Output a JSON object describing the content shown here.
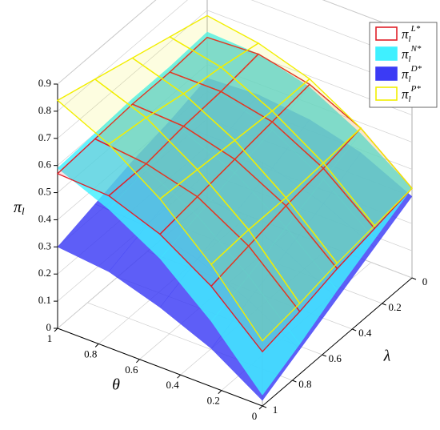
{
  "chart_data": {
    "type": "surface3d",
    "xlabel": "θ",
    "ylabel": "λ",
    "zlabel": {
      "symbol": "π",
      "sub": "l"
    },
    "x": [
      0,
      0.25,
      0.5,
      0.75,
      1
    ],
    "y": [
      0,
      0.25,
      0.5,
      0.75,
      1
    ],
    "xlim": [
      0,
      1
    ],
    "ylim": [
      0,
      1
    ],
    "zlim": [
      0,
      0.9
    ],
    "xticks": [
      1,
      0.8,
      0.6,
      0.4,
      0.2,
      0
    ],
    "yticks": [
      0,
      0.2,
      0.4,
      0.6,
      0.8,
      1
    ],
    "zticks": [
      0,
      0.1,
      0.2,
      0.3,
      0.4,
      0.5,
      0.6,
      0.7,
      0.8,
      0.9
    ],
    "grid": true,
    "legend": "top-right",
    "series": [
      {
        "name": {
          "symbol": "π",
          "sub": "l",
          "sup": "D*"
        },
        "color": "#3b3bf5",
        "style": "solid",
        "z": [
          [
            0.3,
            0.39,
            0.44,
            0.46,
            0.45
          ],
          [
            0.23,
            0.32,
            0.38,
            0.41,
            0.41
          ],
          [
            0.16,
            0.26,
            0.33,
            0.37,
            0.38
          ],
          [
            0.09,
            0.2,
            0.28,
            0.33,
            0.34
          ],
          [
            0.02,
            0.14,
            0.22,
            0.28,
            0.3
          ]
        ]
      },
      {
        "name": {
          "symbol": "π",
          "sub": "l",
          "sup": "N*"
        },
        "color": "#3ff0ff",
        "style": "solid",
        "z": [
          [
            0.33,
            0.46,
            0.56,
            0.61,
            0.62
          ],
          [
            0.26,
            0.41,
            0.52,
            0.58,
            0.61
          ],
          [
            0.19,
            0.35,
            0.48,
            0.56,
            0.61
          ],
          [
            0.11,
            0.29,
            0.44,
            0.54,
            0.6
          ],
          [
            0.04,
            0.24,
            0.4,
            0.51,
            0.59
          ]
        ]
      },
      {
        "name": {
          "symbol": "π",
          "sub": "l",
          "sup": "L*"
        },
        "color": "#e0202a",
        "style": "wire",
        "z": [
          [
            0.33,
            0.48,
            0.57,
            0.61,
            0.6
          ],
          [
            0.3,
            0.45,
            0.55,
            0.59,
            0.59
          ],
          [
            0.27,
            0.43,
            0.53,
            0.58,
            0.59
          ],
          [
            0.23,
            0.4,
            0.51,
            0.56,
            0.58
          ],
          [
            0.2,
            0.37,
            0.49,
            0.56,
            0.57
          ]
        ]
      },
      {
        "name": {
          "symbol": "π",
          "sub": "l",
          "sup": "P*"
        },
        "color": "#f2ee00",
        "style": "wire",
        "z": [
          [
            0.33,
            0.48,
            0.59,
            0.65,
            0.68
          ],
          [
            0.31,
            0.47,
            0.59,
            0.68,
            0.72
          ],
          [
            0.29,
            0.46,
            0.6,
            0.7,
            0.76
          ],
          [
            0.26,
            0.46,
            0.61,
            0.73,
            0.8
          ],
          [
            0.24,
            0.45,
            0.62,
            0.75,
            0.84
          ]
        ]
      }
    ],
    "legend_order": [
      2,
      1,
      0,
      3
    ]
  }
}
